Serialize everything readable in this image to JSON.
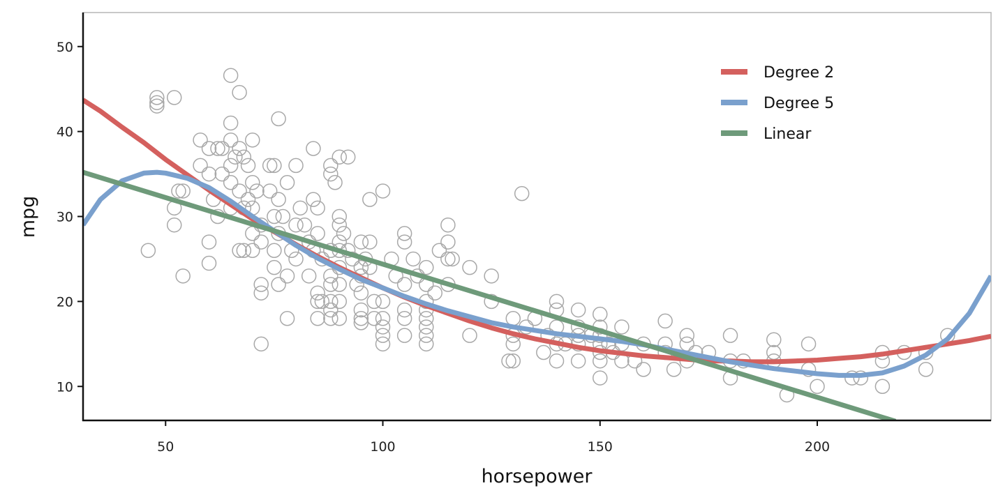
{
  "chart_data": {
    "type": "scatter",
    "title": "",
    "xlabel": "horsepower",
    "ylabel": "mpg",
    "xlim": [
      31,
      240
    ],
    "ylim": [
      6,
      54
    ],
    "xticks": [
      50,
      100,
      150,
      200
    ],
    "yticks": [
      10,
      20,
      30,
      40,
      50
    ],
    "grid": false,
    "legend_position": "top-right",
    "point_color": "#a8a8a8",
    "points": [
      [
        46,
        26
      ],
      [
        48,
        43
      ],
      [
        48,
        44
      ],
      [
        48,
        43.4
      ],
      [
        52,
        44
      ],
      [
        52,
        29
      ],
      [
        52,
        31
      ],
      [
        53,
        33
      ],
      [
        54,
        33
      ],
      [
        54,
        23
      ],
      [
        58,
        39
      ],
      [
        58,
        36
      ],
      [
        60,
        38
      ],
      [
        60,
        35
      ],
      [
        60,
        27
      ],
      [
        60,
        24.5
      ],
      [
        61,
        32
      ],
      [
        62,
        38
      ],
      [
        62,
        30
      ],
      [
        63,
        38
      ],
      [
        63,
        35
      ],
      [
        65,
        39
      ],
      [
        65,
        46.6
      ],
      [
        65,
        41
      ],
      [
        65,
        36
      ],
      [
        65,
        34
      ],
      [
        65,
        31
      ],
      [
        66,
        37
      ],
      [
        67,
        44.6
      ],
      [
        67,
        38
      ],
      [
        67,
        33
      ],
      [
        67,
        26
      ],
      [
        68,
        37
      ],
      [
        68,
        31
      ],
      [
        68,
        26
      ],
      [
        69,
        36
      ],
      [
        69,
        32
      ],
      [
        70,
        39
      ],
      [
        70,
        34
      ],
      [
        70,
        31
      ],
      [
        70,
        28
      ],
      [
        70,
        26
      ],
      [
        71,
        33
      ],
      [
        72,
        29
      ],
      [
        72,
        27
      ],
      [
        72,
        22
      ],
      [
        72,
        21
      ],
      [
        72,
        15
      ],
      [
        74,
        36
      ],
      [
        74,
        33
      ],
      [
        75,
        36
      ],
      [
        75,
        30
      ],
      [
        75,
        26
      ],
      [
        75,
        24
      ],
      [
        76,
        41.5
      ],
      [
        76,
        32
      ],
      [
        76,
        28
      ],
      [
        76,
        22
      ],
      [
        77,
        30
      ],
      [
        78,
        34
      ],
      [
        78,
        23
      ],
      [
        78,
        18
      ],
      [
        79,
        26
      ],
      [
        80,
        36
      ],
      [
        80,
        29
      ],
      [
        80,
        25
      ],
      [
        81,
        31
      ],
      [
        82,
        29
      ],
      [
        83,
        27
      ],
      [
        83,
        23
      ],
      [
        84,
        38
      ],
      [
        84,
        32
      ],
      [
        84,
        26
      ],
      [
        85,
        31
      ],
      [
        85,
        28
      ],
      [
        85,
        21
      ],
      [
        85,
        20
      ],
      [
        85,
        18
      ],
      [
        86,
        25
      ],
      [
        86,
        20
      ],
      [
        88,
        36
      ],
      [
        88,
        35
      ],
      [
        88,
        26
      ],
      [
        88,
        23
      ],
      [
        88,
        22
      ],
      [
        88,
        20
      ],
      [
        88,
        19
      ],
      [
        88,
        18
      ],
      [
        89,
        34
      ],
      [
        90,
        37
      ],
      [
        90,
        30
      ],
      [
        90,
        29
      ],
      [
        90,
        27
      ],
      [
        90,
        26
      ],
      [
        90,
        24
      ],
      [
        90,
        22
      ],
      [
        90,
        20
      ],
      [
        90,
        18
      ],
      [
        91,
        28
      ],
      [
        92,
        37
      ],
      [
        92,
        26
      ],
      [
        93,
        25
      ],
      [
        94,
        22
      ],
      [
        95,
        27
      ],
      [
        95,
        24
      ],
      [
        95,
        23
      ],
      [
        95,
        21
      ],
      [
        95,
        19
      ],
      [
        95,
        18
      ],
      [
        95,
        17.5
      ],
      [
        96,
        25
      ],
      [
        97,
        32
      ],
      [
        97,
        27
      ],
      [
        97,
        24
      ],
      [
        98,
        20
      ],
      [
        98,
        18
      ],
      [
        100,
        33
      ],
      [
        100,
        20
      ],
      [
        100,
        18
      ],
      [
        100,
        17
      ],
      [
        100,
        16
      ],
      [
        100,
        15
      ],
      [
        102,
        25
      ],
      [
        103,
        23
      ],
      [
        105,
        28
      ],
      [
        105,
        27
      ],
      [
        105,
        22
      ],
      [
        105,
        19
      ],
      [
        105,
        18
      ],
      [
        105,
        16
      ],
      [
        107,
        25
      ],
      [
        108,
        23
      ],
      [
        110,
        24
      ],
      [
        110,
        22
      ],
      [
        110,
        20
      ],
      [
        110,
        19
      ],
      [
        110,
        18
      ],
      [
        110,
        17
      ],
      [
        110,
        16
      ],
      [
        110,
        15
      ],
      [
        112,
        21
      ],
      [
        113,
        26
      ],
      [
        115,
        29
      ],
      [
        115,
        27
      ],
      [
        115,
        25
      ],
      [
        115,
        22
      ],
      [
        116,
        25
      ],
      [
        120,
        24
      ],
      [
        120,
        16
      ],
      [
        125,
        23
      ],
      [
        125,
        20
      ],
      [
        129,
        13
      ],
      [
        130,
        18
      ],
      [
        130,
        16
      ],
      [
        130,
        15
      ],
      [
        130,
        13
      ],
      [
        132,
        32.7
      ],
      [
        133,
        17
      ],
      [
        135,
        18
      ],
      [
        137,
        14
      ],
      [
        138,
        16
      ],
      [
        140,
        20
      ],
      [
        140,
        19
      ],
      [
        140,
        17
      ],
      [
        140,
        15
      ],
      [
        140,
        13
      ],
      [
        142,
        15
      ],
      [
        145,
        19
      ],
      [
        145,
        17
      ],
      [
        145,
        16
      ],
      [
        145,
        15
      ],
      [
        145,
        13
      ],
      [
        148,
        16
      ],
      [
        150,
        18.5
      ],
      [
        150,
        17
      ],
      [
        150,
        16
      ],
      [
        150,
        15
      ],
      [
        150,
        14
      ],
      [
        150,
        13
      ],
      [
        150,
        11
      ],
      [
        152,
        15
      ],
      [
        153,
        14
      ],
      [
        155,
        17
      ],
      [
        155,
        15
      ],
      [
        155,
        13
      ],
      [
        158,
        13
      ],
      [
        160,
        15
      ],
      [
        160,
        12
      ],
      [
        165,
        17.7
      ],
      [
        165,
        15
      ],
      [
        165,
        14
      ],
      [
        167,
        12
      ],
      [
        170,
        16
      ],
      [
        170,
        15
      ],
      [
        170,
        13
      ],
      [
        172,
        14
      ],
      [
        175,
        14
      ],
      [
        180,
        16
      ],
      [
        180,
        13
      ],
      [
        180,
        11
      ],
      [
        183,
        13
      ],
      [
        190,
        15.5
      ],
      [
        190,
        14
      ],
      [
        190,
        13
      ],
      [
        193,
        9
      ],
      [
        198,
        15
      ],
      [
        198,
        12
      ],
      [
        200,
        10
      ],
      [
        208,
        11
      ],
      [
        210,
        11
      ],
      [
        215,
        14
      ],
      [
        215,
        13
      ],
      [
        215,
        10
      ],
      [
        220,
        14
      ],
      [
        225,
        14
      ],
      [
        225,
        12
      ],
      [
        230,
        16
      ]
    ],
    "series": [
      {
        "name": "Degree 2",
        "color": "#d4605e",
        "x": [
          31,
          35,
          40,
          45,
          50,
          55,
          60,
          65,
          70,
          75,
          80,
          85,
          90,
          95,
          100,
          105,
          110,
          115,
          120,
          125,
          130,
          135,
          140,
          145,
          150,
          155,
          160,
          165,
          170,
          175,
          180,
          185,
          190,
          195,
          200,
          205,
          210,
          215,
          220,
          225,
          230,
          235,
          240
        ],
        "y": [
          43.7,
          42.4,
          40.5,
          38.7,
          36.7,
          34.9,
          33.1,
          31.4,
          29.7,
          28.2,
          26.7,
          25.3,
          24.0,
          22.8,
          21.6,
          20.5,
          19.5,
          18.6,
          17.7,
          16.9,
          16.2,
          15.6,
          15.1,
          14.6,
          14.2,
          13.9,
          13.6,
          13.4,
          13.2,
          13.0,
          13.0,
          12.9,
          12.9,
          13.0,
          13.1,
          13.3,
          13.5,
          13.8,
          14.2,
          14.6,
          15.0,
          15.4,
          15.9
        ]
      },
      {
        "name": "Degree 5",
        "color": "#7aa0cd",
        "x": [
          31,
          35,
          40,
          45,
          48,
          50,
          55,
          60,
          65,
          70,
          75,
          80,
          85,
          90,
          95,
          100,
          105,
          110,
          115,
          120,
          125,
          130,
          135,
          140,
          145,
          150,
          155,
          160,
          165,
          170,
          175,
          180,
          185,
          190,
          195,
          200,
          205,
          208,
          210,
          215,
          220,
          225,
          230,
          235,
          240
        ],
        "y": [
          29.0,
          32.0,
          34.2,
          35.1,
          35.2,
          35.1,
          34.5,
          33.4,
          31.8,
          30.0,
          28.3,
          26.6,
          25.1,
          23.8,
          22.6,
          21.6,
          20.6,
          19.7,
          18.9,
          18.2,
          17.5,
          17.0,
          16.6,
          16.2,
          15.9,
          15.6,
          15.3,
          14.9,
          14.4,
          13.9,
          13.4,
          12.9,
          12.5,
          12.1,
          11.8,
          11.5,
          11.3,
          11.3,
          11.3,
          11.6,
          12.4,
          13.7,
          15.6,
          18.6,
          23.0
        ]
      },
      {
        "name": "Linear",
        "color": "#6e9a7a",
        "x": [
          31,
          218
        ],
        "y": [
          35.2,
          5.9
        ]
      }
    ]
  }
}
